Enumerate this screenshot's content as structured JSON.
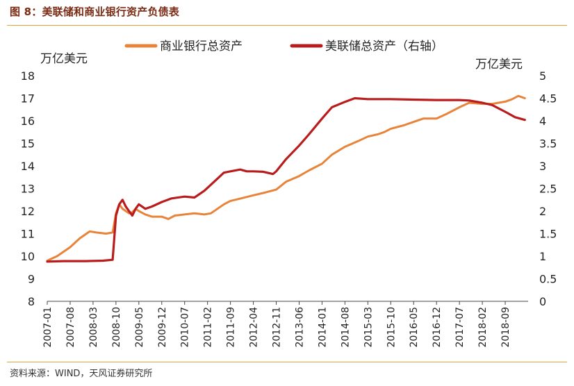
{
  "title": "图 8：美联储和商业银行资产负债表",
  "source": "资料来源：WIND，天风证券研究所",
  "chart_data": {
    "type": "line",
    "title": "",
    "xlabel": "",
    "ylabel_left": "万亿美元",
    "ylabel_right": "万亿美元",
    "ylim_left": [
      8,
      18
    ],
    "ylim_right": [
      0,
      5
    ],
    "yticks_left": [
      "8",
      "9",
      "10",
      "11",
      "12",
      "13",
      "14",
      "15",
      "16",
      "17",
      "18"
    ],
    "yticks_right": [
      "0",
      "0.5",
      "1",
      "1.5",
      "2",
      "2.5",
      "3",
      "3.5",
      "4",
      "4.5",
      "5"
    ],
    "x_range": [
      "2007-01",
      "2019-04"
    ],
    "xticks": [
      "2007-01",
      "2007-08",
      "2008-03",
      "2008-10",
      "2009-05",
      "2009-12",
      "2010-07",
      "2011-02",
      "2011-09",
      "2012-04",
      "2012-11",
      "2013-06",
      "2014-01",
      "2014-08",
      "2015-03",
      "2015-10",
      "2016-05",
      "2016-12",
      "2017-07",
      "2018-02",
      "2018-09"
    ],
    "grid": false,
    "legend_position": "top-center",
    "series": [
      {
        "name": "商业银行总资产",
        "axis": "left",
        "color": "#e8843a",
        "points": [
          [
            "2007-01",
            9.8
          ],
          [
            "2007-04",
            10.0
          ],
          [
            "2007-08",
            10.4
          ],
          [
            "2007-11",
            10.8
          ],
          [
            "2008-02",
            11.1
          ],
          [
            "2008-04",
            11.05
          ],
          [
            "2008-07",
            11.0
          ],
          [
            "2008-09",
            11.05
          ],
          [
            "2008-10",
            11.9
          ],
          [
            "2008-11",
            12.3
          ],
          [
            "2008-12",
            12.1
          ],
          [
            "2009-01",
            12.0
          ],
          [
            "2009-02",
            11.9
          ],
          [
            "2009-03",
            11.95
          ],
          [
            "2009-04",
            12.1
          ],
          [
            "2009-05",
            12.0
          ],
          [
            "2009-07",
            11.85
          ],
          [
            "2009-09",
            11.75
          ],
          [
            "2009-12",
            11.75
          ],
          [
            "2010-02",
            11.65
          ],
          [
            "2010-04",
            11.8
          ],
          [
            "2010-07",
            11.85
          ],
          [
            "2010-10",
            11.9
          ],
          [
            "2011-01",
            11.85
          ],
          [
            "2011-03",
            11.9
          ],
          [
            "2011-05",
            12.1
          ],
          [
            "2011-07",
            12.3
          ],
          [
            "2011-09",
            12.45
          ],
          [
            "2011-12",
            12.55
          ],
          [
            "2012-04",
            12.7
          ],
          [
            "2012-07",
            12.8
          ],
          [
            "2012-11",
            12.95
          ],
          [
            "2013-02",
            13.3
          ],
          [
            "2013-06",
            13.55
          ],
          [
            "2013-09",
            13.8
          ],
          [
            "2014-01",
            14.1
          ],
          [
            "2014-04",
            14.5
          ],
          [
            "2014-08",
            14.85
          ],
          [
            "2014-12",
            15.1
          ],
          [
            "2015-03",
            15.3
          ],
          [
            "2015-06",
            15.4
          ],
          [
            "2015-08",
            15.5
          ],
          [
            "2015-10",
            15.65
          ],
          [
            "2016-02",
            15.8
          ],
          [
            "2016-05",
            15.95
          ],
          [
            "2016-08",
            16.1
          ],
          [
            "2016-12",
            16.1
          ],
          [
            "2017-03",
            16.3
          ],
          [
            "2017-07",
            16.6
          ],
          [
            "2017-10",
            16.8
          ],
          [
            "2018-02",
            16.75
          ],
          [
            "2018-05",
            16.75
          ],
          [
            "2018-09",
            16.85
          ],
          [
            "2018-11",
            16.95
          ],
          [
            "2019-01",
            17.1
          ],
          [
            "2019-03",
            17.0
          ]
        ]
      },
      {
        "name": "美联储总资产（右轴）",
        "axis": "right",
        "color": "#b81c1c",
        "points": [
          [
            "2007-01",
            0.88
          ],
          [
            "2007-06",
            0.89
          ],
          [
            "2008-01",
            0.89
          ],
          [
            "2008-06",
            0.9
          ],
          [
            "2008-09",
            0.92
          ],
          [
            "2008-10",
            1.9
          ],
          [
            "2008-11",
            2.15
          ],
          [
            "2008-12",
            2.25
          ],
          [
            "2009-01",
            2.1
          ],
          [
            "2009-03",
            1.9
          ],
          [
            "2009-04",
            2.05
          ],
          [
            "2009-05",
            2.15
          ],
          [
            "2009-07",
            2.05
          ],
          [
            "2009-09",
            2.1
          ],
          [
            "2009-12",
            2.2
          ],
          [
            "2010-03",
            2.28
          ],
          [
            "2010-07",
            2.32
          ],
          [
            "2010-10",
            2.3
          ],
          [
            "2011-01",
            2.45
          ],
          [
            "2011-04",
            2.65
          ],
          [
            "2011-07",
            2.85
          ],
          [
            "2011-09",
            2.88
          ],
          [
            "2011-12",
            2.92
          ],
          [
            "2012-02",
            2.88
          ],
          [
            "2012-04",
            2.88
          ],
          [
            "2012-07",
            2.87
          ],
          [
            "2012-10",
            2.82
          ],
          [
            "2012-11",
            2.88
          ],
          [
            "2013-02",
            3.15
          ],
          [
            "2013-06",
            3.45
          ],
          [
            "2013-09",
            3.7
          ],
          [
            "2014-01",
            4.05
          ],
          [
            "2014-04",
            4.3
          ],
          [
            "2014-08",
            4.42
          ],
          [
            "2014-11",
            4.5
          ],
          [
            "2015-03",
            4.48
          ],
          [
            "2015-10",
            4.48
          ],
          [
            "2016-05",
            4.47
          ],
          [
            "2016-12",
            4.46
          ],
          [
            "2017-07",
            4.46
          ],
          [
            "2017-10",
            4.45
          ],
          [
            "2018-02",
            4.4
          ],
          [
            "2018-05",
            4.35
          ],
          [
            "2018-09",
            4.2
          ],
          [
            "2018-12",
            4.08
          ],
          [
            "2019-03",
            4.02
          ]
        ]
      }
    ]
  }
}
